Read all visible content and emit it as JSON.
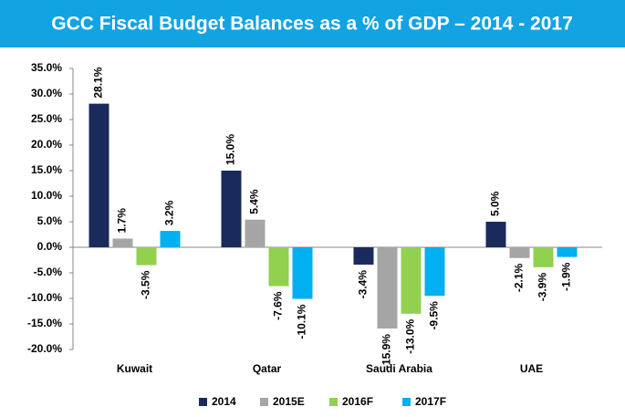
{
  "chart_data": {
    "type": "bar",
    "title": "GCC Fiscal Budget Balances as a % of GDP – 2014 - 2017",
    "categories": [
      "Kuwait",
      "Qatar",
      "Saudi Arabia",
      "UAE"
    ],
    "series": [
      {
        "name": "2014",
        "color": "#1b2a5c",
        "values": [
          28.1,
          15.0,
          -3.4,
          5.0
        ],
        "value_labels": [
          "28.1%",
          "15.0%",
          "-3.4%",
          "5.0%"
        ]
      },
      {
        "name": "2015E",
        "color": "#a5a5a5",
        "values": [
          1.7,
          5.4,
          -15.9,
          -2.1
        ],
        "value_labels": [
          "1.7%",
          "5.4%",
          "-15.9%",
          "-2.1%"
        ]
      },
      {
        "name": "2016F",
        "color": "#92d050",
        "values": [
          -3.5,
          -7.6,
          -13.0,
          -3.9
        ],
        "value_labels": [
          "-3.5%",
          "-7.6%",
          "-13.0%",
          "-3.9%"
        ]
      },
      {
        "name": "2017F",
        "color": "#00b0f0",
        "values": [
          3.2,
          -10.1,
          -9.5,
          -1.9
        ],
        "value_labels": [
          "3.2%",
          "-10.1%",
          "-9.5%",
          "-1.9%"
        ]
      }
    ],
    "ylim": [
      -20,
      35
    ],
    "yticks": [
      {
        "value": -20,
        "label": "-20.0%"
      },
      {
        "value": -15,
        "label": "-15.0%"
      },
      {
        "value": -10,
        "label": "-10.0%"
      },
      {
        "value": -5,
        "label": "-5.0%"
      },
      {
        "value": 0,
        "label": "0.0%"
      },
      {
        "value": 5,
        "label": "5.0%"
      },
      {
        "value": 10,
        "label": "10.0%"
      },
      {
        "value": 15,
        "label": "15.0%"
      },
      {
        "value": 20,
        "label": "20.0%"
      },
      {
        "value": 25,
        "label": "25.0%"
      },
      {
        "value": 30,
        "label": "30.0%"
      },
      {
        "value": 35,
        "label": "35.0%"
      }
    ],
    "grid": false,
    "legend": "bottom"
  }
}
